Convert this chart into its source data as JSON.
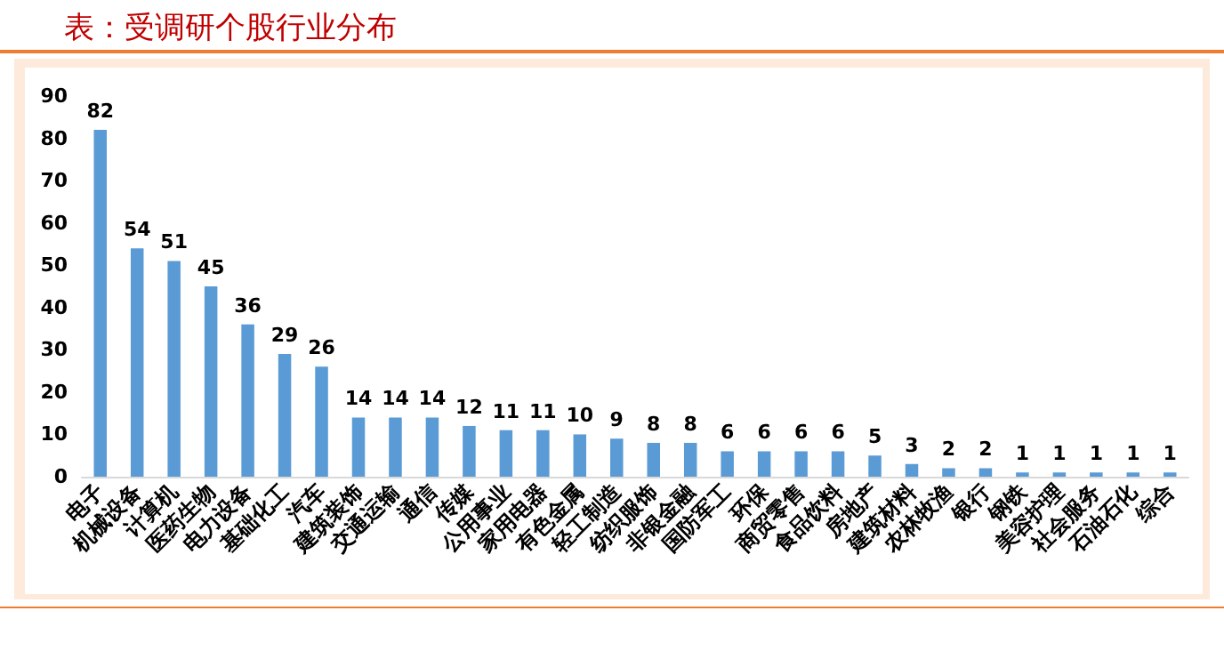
{
  "chart_data": {
    "type": "bar",
    "title": "表：受调研个股行业分布",
    "categories": [
      "电子",
      "机械设备",
      "计算机",
      "医药生物",
      "电力设备",
      "基础化工",
      "汽车",
      "建筑装饰",
      "交通运输",
      "通信",
      "传媒",
      "公用事业",
      "家用电器",
      "有色金属",
      "轻工制造",
      "纺织服饰",
      "非银金融",
      "国防军工",
      "环保",
      "商贸零售",
      "食品饮料",
      "房地产",
      "建筑材料",
      "农林牧渔",
      "银行",
      "钢铁",
      "美容护理",
      "社会服务",
      "石油石化",
      "综合"
    ],
    "values": [
      82,
      54,
      51,
      45,
      36,
      29,
      26,
      14,
      14,
      14,
      12,
      11,
      11,
      10,
      9,
      8,
      8,
      6,
      6,
      6,
      6,
      5,
      3,
      2,
      2,
      1,
      1,
      1,
      1,
      1
    ],
    "color": "#5b9bd5",
    "ylim": [
      0,
      90
    ],
    "yticks": [
      0,
      10,
      20,
      30,
      40,
      50,
      60,
      70,
      80,
      90
    ],
    "grid": false,
    "data_labels": true
  }
}
